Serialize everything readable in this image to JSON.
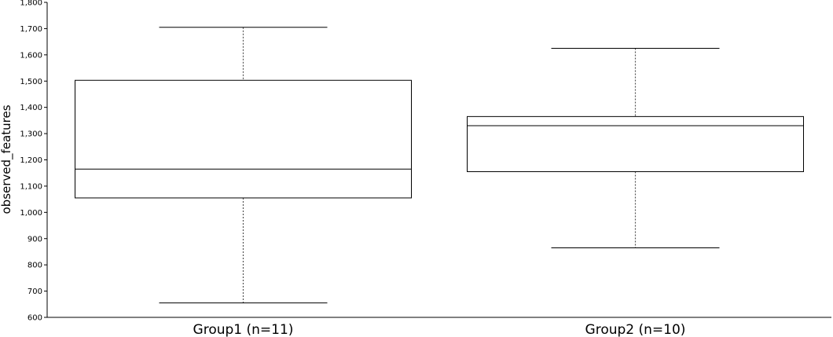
{
  "chart_data": {
    "type": "box",
    "ylabel": "observed_features",
    "xlabel": "",
    "ylim": [
      600,
      1800
    ],
    "yticks": [
      600,
      700,
      800,
      900,
      1000,
      1100,
      1200,
      1300,
      1400,
      1500,
      1600,
      1700,
      1800
    ],
    "ytick_labels": [
      "600",
      "700",
      "800",
      "900",
      "1,000",
      "1,100",
      "1,200",
      "1,300",
      "1,400",
      "1,500",
      "1,600",
      "1,700",
      "1,800"
    ],
    "grid": false,
    "categories": [
      "Group1 (n=11)",
      "Group2 (n=10)"
    ],
    "boxes": [
      {
        "category": "Group1 (n=11)",
        "whisker_low": 655,
        "q1": 1055,
        "median": 1165,
        "q3": 1503,
        "whisker_high": 1705
      },
      {
        "category": "Group2 (n=10)",
        "whisker_low": 865,
        "q1": 1155,
        "median": 1330,
        "q3": 1365,
        "whisker_high": 1625
      }
    ]
  }
}
